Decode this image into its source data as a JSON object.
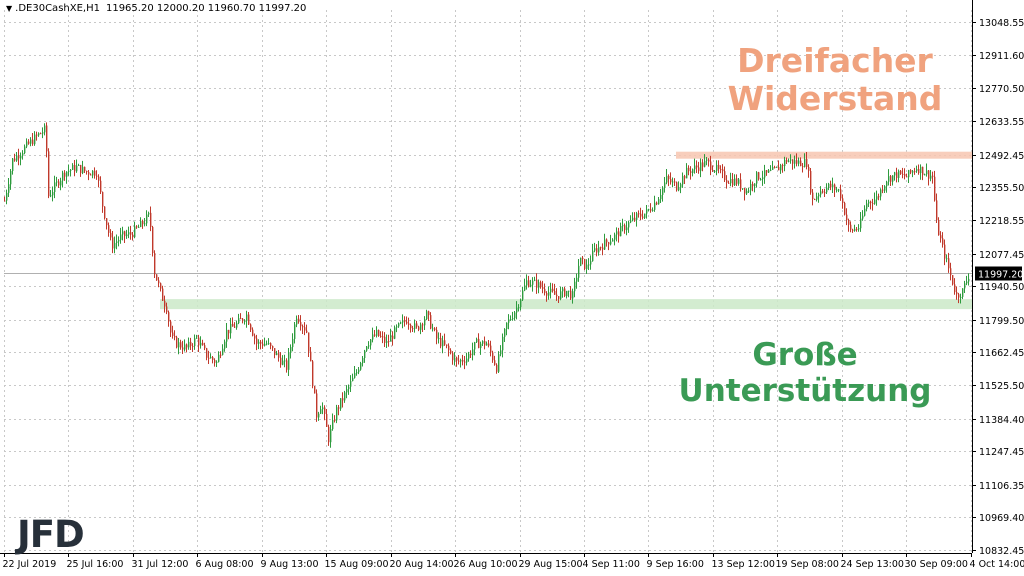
{
  "header": {
    "symbol": ".DE30CashXE,H1",
    "ohlc": "11965.20 12000.20 11960.70 11997.20"
  },
  "annotations": {
    "resistance_line1": "Dreifacher",
    "resistance_line2": "Widerstand",
    "support_line1": "Große",
    "support_line2": "Unterstützung"
  },
  "logo": "JFD",
  "colors": {
    "bull": "#2e9b3e",
    "bear": "#c0392b",
    "resistance_zone": "#f7c6b0",
    "support_zone": "#cbe9c8",
    "resistance_text": "#f0a27e",
    "support_text": "#3a9a55",
    "current_price_bg": "#000000"
  },
  "chart_data": {
    "type": "candlestick",
    "timeframe": "H1",
    "y_ticks": [
      13048.55,
      12911.6,
      12770.5,
      12633.55,
      12492.45,
      12355.5,
      12218.55,
      12077.45,
      11940.5,
      11799.5,
      11662.45,
      11525.5,
      11384.4,
      11247.45,
      11106.35,
      10969.4,
      10832.45
    ],
    "ylim": [
      10820,
      13100
    ],
    "x_ticks": [
      "22 Jul 2019",
      "25 Jul 16:00",
      "31 Jul 12:00",
      "6 Aug 08:00",
      "9 Aug 13:00",
      "15 Aug 09:00",
      "20 Aug 14:00",
      "26 Aug 10:00",
      "29 Aug 15:00",
      "4 Sep 11:00",
      "9 Sep 16:00",
      "13 Sep 12:00",
      "19 Sep 08:00",
      "24 Sep 13:00",
      "30 Sep 09:00",
      "4 Oct 14:00"
    ],
    "current_price": "11997.20",
    "zones": [
      {
        "label": "Dreifacher Widerstand",
        "price": 12492.45
      },
      {
        "label": "Große Unterstützung",
        "price": 11865.0
      }
    ],
    "close_path": [
      [
        0,
        12300
      ],
      [
        8,
        12470
      ],
      [
        20,
        12520
      ],
      [
        32,
        12570
      ],
      [
        41,
        12600
      ],
      [
        44,
        12320
      ],
      [
        60,
        12420
      ],
      [
        72,
        12440
      ],
      [
        82,
        12420
      ],
      [
        92,
        12420
      ],
      [
        98,
        12280
      ],
      [
        107,
        12110
      ],
      [
        117,
        12150
      ],
      [
        127,
        12160
      ],
      [
        137,
        12200
      ],
      [
        145,
        12240
      ],
      [
        150,
        12000
      ],
      [
        157,
        11900
      ],
      [
        162,
        11850
      ],
      [
        167,
        11720
      ],
      [
        172,
        11700
      ],
      [
        182,
        11680
      ],
      [
        192,
        11720
      ],
      [
        202,
        11650
      ],
      [
        212,
        11620
      ],
      [
        222,
        11750
      ],
      [
        232,
        11780
      ],
      [
        242,
        11820
      ],
      [
        252,
        11700
      ],
      [
        262,
        11700
      ],
      [
        272,
        11650
      ],
      [
        282,
        11600
      ],
      [
        292,
        11820
      ],
      [
        302,
        11750
      ],
      [
        312,
        11400
      ],
      [
        317,
        11450
      ],
      [
        324,
        11300
      ],
      [
        332,
        11420
      ],
      [
        342,
        11500
      ],
      [
        352,
        11580
      ],
      [
        362,
        11700
      ],
      [
        372,
        11740
      ],
      [
        382,
        11700
      ],
      [
        392,
        11760
      ],
      [
        402,
        11800
      ],
      [
        412,
        11760
      ],
      [
        422,
        11820
      ],
      [
        432,
        11720
      ],
      [
        442,
        11680
      ],
      [
        452,
        11620
      ],
      [
        462,
        11640
      ],
      [
        472,
        11700
      ],
      [
        482,
        11700
      ],
      [
        492,
        11600
      ],
      [
        502,
        11780
      ],
      [
        512,
        11850
      ],
      [
        522,
        11960
      ],
      [
        532,
        11950
      ],
      [
        542,
        11920
      ],
      [
        552,
        11900
      ],
      [
        562,
        11920
      ],
      [
        568,
        11900
      ],
      [
        575,
        12050
      ],
      [
        582,
        12020
      ],
      [
        590,
        12090
      ],
      [
        600,
        12120
      ],
      [
        610,
        12150
      ],
      [
        620,
        12190
      ],
      [
        632,
        12230
      ],
      [
        642,
        12250
      ],
      [
        652,
        12300
      ],
      [
        662,
        12390
      ],
      [
        672,
        12360
      ],
      [
        682,
        12420
      ],
      [
        692,
        12440
      ],
      [
        702,
        12460
      ],
      [
        712,
        12430
      ],
      [
        722,
        12390
      ],
      [
        732,
        12380
      ],
      [
        742,
        12340
      ],
      [
        752,
        12400
      ],
      [
        762,
        12410
      ],
      [
        772,
        12430
      ],
      [
        782,
        12470
      ],
      [
        792,
        12460
      ],
      [
        802,
        12460
      ],
      [
        808,
        12300
      ],
      [
        815,
        12340
      ],
      [
        825,
        12360
      ],
      [
        835,
        12340
      ],
      [
        845,
        12170
      ],
      [
        855,
        12190
      ],
      [
        862,
        12290
      ],
      [
        872,
        12310
      ],
      [
        882,
        12390
      ],
      [
        892,
        12410
      ],
      [
        902,
        12400
      ],
      [
        912,
        12440
      ],
      [
        920,
        12420
      ],
      [
        928,
        12400
      ],
      [
        932,
        12200
      ],
      [
        938,
        12100
      ],
      [
        945,
        12000
      ],
      [
        952,
        11900
      ],
      [
        958,
        11920
      ],
      [
        965,
        11997
      ]
    ]
  }
}
